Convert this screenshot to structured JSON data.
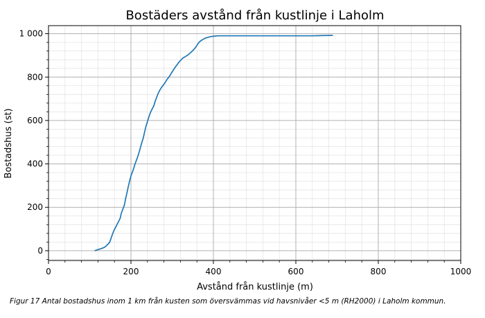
{
  "caption": "Figur 17 Antal bostadshus inom 1 km från kusten som översvämmas vid havsnivåer <5 m (RH2000) i Laholm kommun.",
  "chart_data": {
    "type": "line",
    "title": "Bostäders avstånd från kustlinje i Laholm",
    "xlabel": "Avstånd från kustlinje (m)",
    "ylabel": "Bostadshus (st)",
    "xlim": [
      0,
      1000
    ],
    "ylim": [
      -45,
      1037
    ],
    "xticks": [
      0,
      200,
      400,
      600,
      800,
      1000
    ],
    "xtick_labels": [
      "0",
      "200",
      "400",
      "600",
      "800",
      "1000"
    ],
    "yticks": [
      0,
      200,
      400,
      600,
      800,
      1000
    ],
    "ytick_labels": [
      "0",
      "200",
      "400",
      "600",
      "800",
      "1 000"
    ],
    "grid": true,
    "line_color": "#1f77b4",
    "series": [
      {
        "x": [
          112,
          120,
          128,
          135,
          140,
          144,
          148,
          152,
          155,
          158,
          162,
          166,
          170,
          174,
          176,
          178,
          180,
          184,
          187,
          190,
          193,
          196,
          198,
          200,
          205,
          210,
          215,
          220,
          225,
          230,
          233,
          236,
          240,
          244,
          248,
          252,
          256,
          259,
          262,
          266,
          270,
          274,
          278,
          282,
          286,
          290,
          294,
          298,
          302,
          306,
          310,
          314,
          318,
          322,
          326,
          330,
          334,
          338,
          342,
          346,
          350,
          354,
          358,
          362,
          366,
          370,
          375,
          380,
          385,
          390,
          395,
          400,
          405,
          410,
          420,
          440,
          480,
          520,
          560,
          600,
          640,
          660,
          680,
          690
        ],
        "y": [
          0,
          5,
          10,
          15,
          22,
          30,
          38,
          58,
          75,
          90,
          105,
          120,
          135,
          150,
          168,
          180,
          190,
          210,
          240,
          265,
          290,
          315,
          330,
          345,
          370,
          400,
          425,
          455,
          490,
          520,
          545,
          570,
          595,
          620,
          640,
          655,
          670,
          690,
          705,
          725,
          740,
          752,
          762,
          772,
          785,
          795,
          805,
          818,
          830,
          842,
          852,
          862,
          872,
          880,
          888,
          892,
          897,
          902,
          908,
          915,
          922,
          930,
          940,
          952,
          962,
          968,
          974,
          979,
          982,
          985,
          987,
          988,
          989,
          990,
          990,
          990,
          990,
          990,
          990,
          990,
          990,
          991,
          992,
          992
        ]
      }
    ]
  }
}
